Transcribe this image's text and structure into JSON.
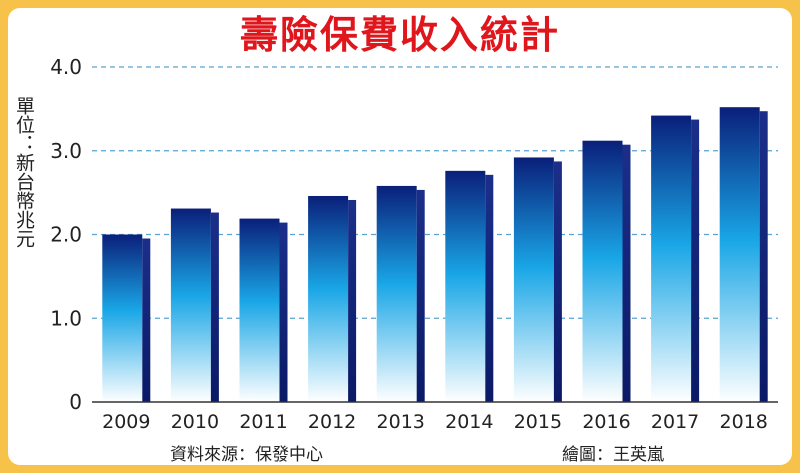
{
  "title": "壽險保費收入統計",
  "unit_label": "單位：新台幣兆元",
  "source": "資料來源：保發中心",
  "credit": "繪圖：王英嵐",
  "colors": {
    "background": "#f6c24a",
    "title": "#e0161d",
    "bar_top": "#0a1f7a",
    "bar_mid": "#19a6e6",
    "bar_bottom": "#ffffff",
    "grid": "#5aa3d0"
  },
  "chart_data": {
    "type": "bar",
    "categories": [
      "2009",
      "2010",
      "2011",
      "2012",
      "2013",
      "2014",
      "2015",
      "2016",
      "2017",
      "2018"
    ],
    "values": [
      2.0,
      2.31,
      2.19,
      2.46,
      2.58,
      2.76,
      2.92,
      3.12,
      3.42,
      3.52
    ],
    "ylim": [
      0,
      4
    ],
    "yticks": [
      "0",
      "1.0",
      "2.0",
      "3.0",
      "4.0"
    ],
    "grid": true
  }
}
